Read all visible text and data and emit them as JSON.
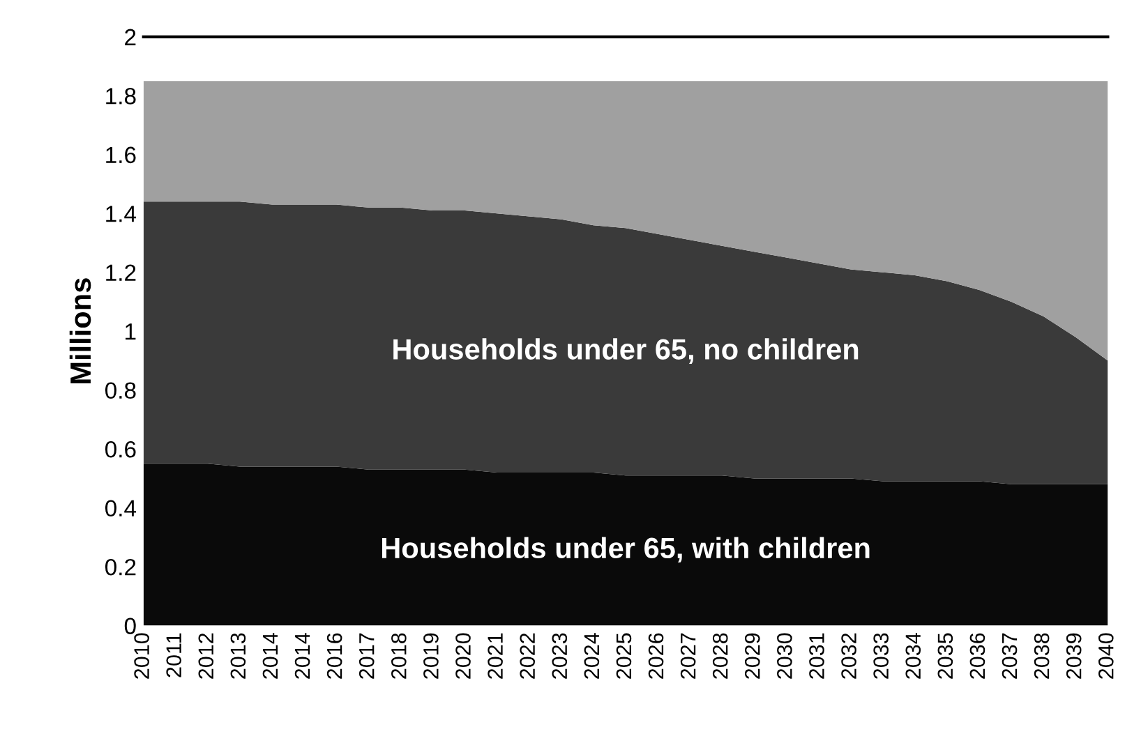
{
  "chart_data": {
    "type": "area",
    "stacked": true,
    "ylabel": "Millions",
    "categories": [
      "2010",
      "2011",
      "2012",
      "2013",
      "2014",
      "2014",
      "2016",
      "2017",
      "2018",
      "2019",
      "2020",
      "2021",
      "2022",
      "2023",
      "2024",
      "2025",
      "2026",
      "2027",
      "2028",
      "2029",
      "2030",
      "2031",
      "2032",
      "2033",
      "2034",
      "2035",
      "2036",
      "2037",
      "2038",
      "2039",
      "2040"
    ],
    "series": [
      {
        "name": "Households under 65, with children",
        "color": "#0a0a0a",
        "values": [
          0.55,
          0.55,
          0.55,
          0.54,
          0.54,
          0.54,
          0.54,
          0.53,
          0.53,
          0.53,
          0.53,
          0.52,
          0.52,
          0.52,
          0.52,
          0.51,
          0.51,
          0.51,
          0.51,
          0.5,
          0.5,
          0.5,
          0.5,
          0.49,
          0.49,
          0.49,
          0.49,
          0.48,
          0.48,
          0.48,
          0.48
        ]
      },
      {
        "name": "Households under 65, no children",
        "color": "#3a3a3a",
        "values": [
          0.89,
          0.89,
          0.89,
          0.9,
          0.89,
          0.89,
          0.89,
          0.89,
          0.89,
          0.88,
          0.88,
          0.88,
          0.87,
          0.86,
          0.84,
          0.84,
          0.82,
          0.8,
          0.78,
          0.77,
          0.75,
          0.73,
          0.71,
          0.71,
          0.7,
          0.68,
          0.65,
          0.62,
          0.57,
          0.5,
          0.42
        ]
      },
      {
        "color": "#a0a0a0",
        "values": [
          0.41,
          0.41,
          0.41,
          0.41,
          0.42,
          0.42,
          0.42,
          0.43,
          0.43,
          0.44,
          0.44,
          0.45,
          0.46,
          0.47,
          0.49,
          0.5,
          0.52,
          0.54,
          0.56,
          0.58,
          0.6,
          0.62,
          0.64,
          0.65,
          0.66,
          0.68,
          0.71,
          0.75,
          0.8,
          0.87,
          0.95
        ]
      }
    ],
    "ylim": [
      0,
      2
    ],
    "yticks": [
      0,
      0.2,
      0.4,
      0.6,
      0.8,
      1,
      1.2,
      1.4,
      1.6,
      1.8,
      2
    ],
    "grid": false,
    "legend": false
  }
}
